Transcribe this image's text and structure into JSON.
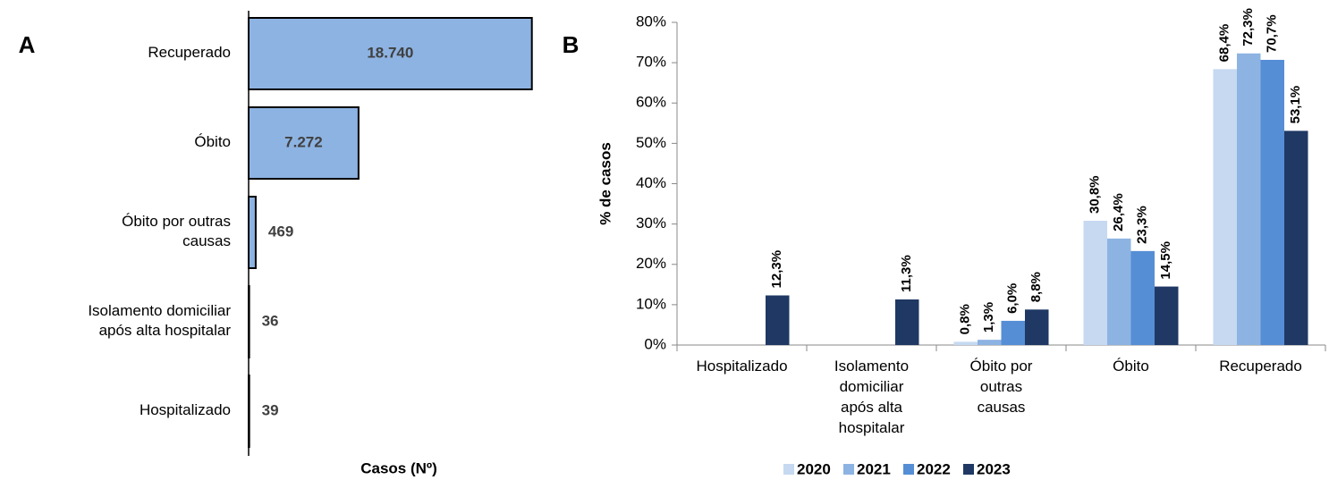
{
  "chart_data": [
    {
      "type": "hbar",
      "panel": "A",
      "xlabel": "Casos (Nº)",
      "categories": [
        "Recuperado",
        "Óbito",
        "Óbito por outras causas",
        "Isolamento domiciliar após alta hospitalar",
        "Hospitalizado"
      ],
      "values": [
        18740,
        7272,
        469,
        36,
        39
      ],
      "value_labels": [
        "18.740",
        "7.272",
        "469",
        "36",
        "39"
      ],
      "color": "#8db3e2",
      "xlim": [
        0,
        20000
      ]
    },
    {
      "type": "bar",
      "panel": "B",
      "ylabel": "% de casos",
      "categories": [
        "Hospitalizado",
        "Isolamento domiciliar após alta hospitalar",
        "Óbito por outras causas",
        "Óbito",
        "Recuperado"
      ],
      "series": [
        {
          "name": "2020",
          "color": "#c6d9f1",
          "values": [
            null,
            null,
            0.8,
            30.8,
            68.4
          ],
          "value_labels": [
            null,
            null,
            "0,8%",
            "30,8%",
            "68,4%"
          ]
        },
        {
          "name": "2021",
          "color": "#8db3e2",
          "values": [
            null,
            null,
            1.3,
            26.4,
            72.3
          ],
          "value_labels": [
            null,
            null,
            "1,3%",
            "26,4%",
            "72,3%"
          ]
        },
        {
          "name": "2022",
          "color": "#558ed5",
          "values": [
            null,
            null,
            6.0,
            23.3,
            70.7
          ],
          "value_labels": [
            null,
            null,
            "6,0%",
            "23,3%",
            "70,7%"
          ]
        },
        {
          "name": "2023",
          "color": "#1f3864",
          "values": [
            12.3,
            11.3,
            8.8,
            14.5,
            53.1
          ],
          "value_labels": [
            "12,3%",
            "11,3%",
            "8,8%",
            "14,5%",
            "53,1%"
          ]
        }
      ],
      "ylim": [
        0,
        80
      ],
      "yticks": [
        {
          "value": 0,
          "label": "0%"
        },
        {
          "value": 10,
          "label": "10%"
        },
        {
          "value": 20,
          "label": "20%"
        },
        {
          "value": 30,
          "label": "30%"
        },
        {
          "value": 40,
          "label": "40%"
        },
        {
          "value": 50,
          "label": "50%"
        },
        {
          "value": 60,
          "label": "60%"
        },
        {
          "value": 70,
          "label": "70%"
        },
        {
          "value": 80,
          "label": "80%"
        }
      ],
      "legend": "bottom"
    }
  ]
}
